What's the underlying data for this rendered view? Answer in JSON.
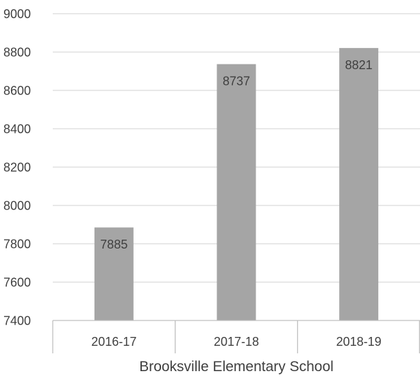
{
  "chart_data": {
    "type": "bar",
    "categories": [
      "2016-17",
      "2017-18",
      "2018-19"
    ],
    "values": [
      7885,
      8737,
      8821
    ],
    "data_labels": [
      "7885",
      "8737",
      "8821"
    ],
    "title": "",
    "xlabel": "Brooksville Elementary School",
    "ylabel": "",
    "ylim": [
      7400,
      9000
    ],
    "yticks": [
      7400,
      7600,
      7800,
      8000,
      8200,
      8400,
      8600,
      8800,
      9000
    ],
    "ytick_labels": [
      "7400",
      "7600",
      "7800",
      "8000",
      "8200",
      "8400",
      "8600",
      "8800",
      "9000"
    ],
    "grid": true,
    "legend": "none",
    "colors": {
      "bar": "#a5a5a5",
      "gridline": "#d9d9d9",
      "axis": "#bfbfbf",
      "text": "#404040"
    }
  }
}
